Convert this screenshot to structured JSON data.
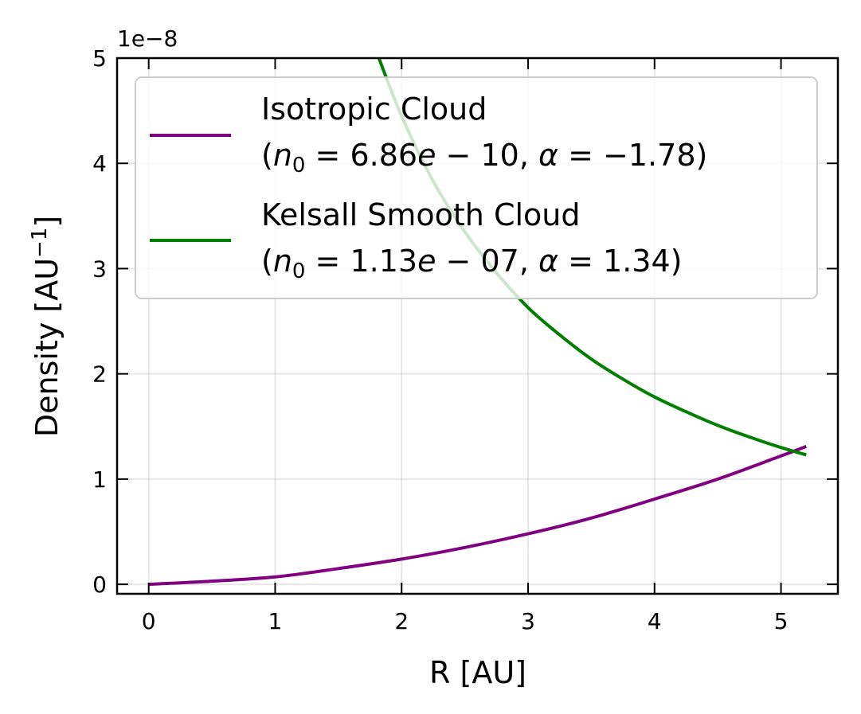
{
  "chart_data": {
    "type": "line",
    "xlabel": "R [AU]",
    "ylabel": "Density [AU",
    "ylabel_exp": "−1",
    "ylabel_close": "]",
    "offset_text": "1e−8",
    "xlim": [
      -0.25,
      5.45
    ],
    "ylim": [
      -0.09,
      5.0
    ],
    "x_ticks": [
      0,
      1,
      2,
      3,
      4,
      5
    ],
    "x_tick_labels": [
      "0",
      "1",
      "2",
      "3",
      "4",
      "5"
    ],
    "y_ticks": [
      0,
      1,
      2,
      3,
      4,
      5
    ],
    "y_tick_labels": [
      "0",
      "1",
      "2",
      "3",
      "4",
      "5"
    ],
    "grid": true,
    "legend_position": "top-right",
    "series": [
      {
        "name": "Isotropic Cloud",
        "params": "(n0 = 6.86e − 10, α = −1.78)",
        "color": "#800080",
        "x": [
          0,
          0.5,
          1.0,
          1.5,
          2.0,
          2.5,
          3.0,
          3.5,
          4.0,
          4.5,
          5.0,
          5.2
        ],
        "y": [
          0.0,
          0.03,
          0.07,
          0.15,
          0.24,
          0.35,
          0.48,
          0.63,
          0.81,
          1.0,
          1.22,
          1.31
        ]
      },
      {
        "name": "Kelsall Smooth Cloud",
        "params": "(n0 = 1.13e − 07, α = 1.34)",
        "color": "#008000",
        "x": [
          1.82,
          2.0,
          2.25,
          2.5,
          2.75,
          3.0,
          3.25,
          3.5,
          3.75,
          4.0,
          4.25,
          4.5,
          4.75,
          5.0,
          5.2
        ],
        "y": [
          5.0,
          4.45,
          3.83,
          3.35,
          2.96,
          2.63,
          2.37,
          2.14,
          1.95,
          1.78,
          1.64,
          1.51,
          1.4,
          1.3,
          1.23
        ]
      }
    ]
  }
}
